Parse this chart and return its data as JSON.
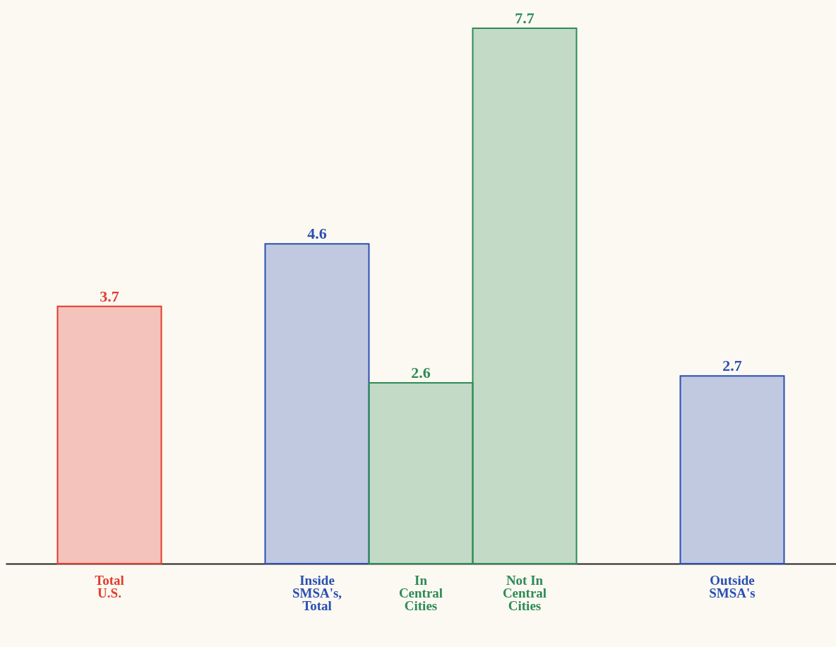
{
  "chart_data": {
    "type": "bar",
    "categories": [
      "Total U.S.",
      null,
      "Inside SMSA's, Total",
      "In Central Cities",
      "Not In Central Cities",
      null,
      "Outside SMSA's"
    ],
    "values": [
      3.7,
      null,
      4.6,
      2.6,
      7.7,
      null,
      2.7
    ],
    "colors": [
      "#e23b2e",
      "#2a4fb5",
      "#2a4fb5",
      "#2e8b57",
      "#2e8b57",
      "#2a4fb5",
      "#2a4fb5"
    ],
    "data_labels": true
  }
}
